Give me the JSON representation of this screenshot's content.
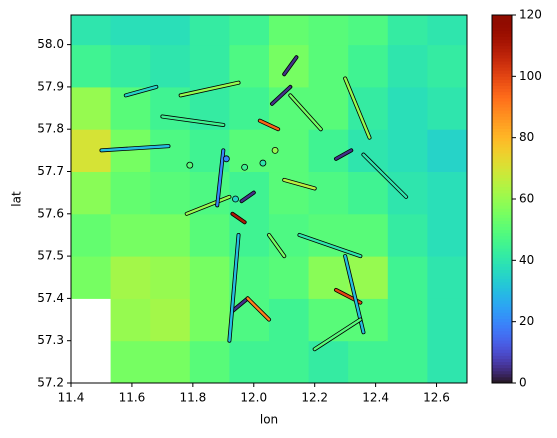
{
  "chart_data": {
    "type": "heatmap",
    "xlabel": "lon",
    "ylabel": "lat",
    "colormap": "turbo",
    "clim": [
      0,
      120
    ],
    "cticks": [
      0,
      20,
      40,
      60,
      80,
      100,
      120
    ],
    "xlim": [
      11.4,
      12.7
    ],
    "ylim": [
      57.2,
      58.07
    ],
    "xticks": [
      11.4,
      11.6,
      11.8,
      {
        "value": 12,
        "label": "12.0"
      },
      12.2,
      12.4,
      12.6
    ],
    "yticks": [
      57.2,
      57.3,
      57.4,
      57.5,
      57.6,
      57.7,
      57.8,
      57.9,
      {
        "value": 58,
        "label": "58.0"
      }
    ],
    "x_edges": [
      11.4,
      11.53,
      11.66,
      11.79,
      11.92,
      12.05,
      12.18,
      12.31,
      12.44,
      12.57,
      12.7
    ],
    "y_edges": [
      57.2,
      57.3,
      57.4,
      57.5,
      57.6,
      57.7,
      57.8,
      57.9,
      58.0,
      58.07
    ],
    "grid_values": [
      [
        null,
        55,
        55,
        50,
        45,
        45,
        42,
        45,
        45,
        40
      ],
      [
        null,
        60,
        62,
        55,
        48,
        45,
        50,
        50,
        45,
        40
      ],
      [
        55,
        62,
        60,
        55,
        48,
        50,
        58,
        60,
        45,
        40
      ],
      [
        52,
        55,
        55,
        50,
        45,
        48,
        50,
        50,
        42,
        38
      ],
      [
        58,
        52,
        50,
        48,
        45,
        50,
        48,
        45,
        40,
        38
      ],
      [
        70,
        55,
        48,
        45,
        50,
        50,
        45,
        40,
        38,
        35
      ],
      [
        60,
        50,
        45,
        42,
        45,
        50,
        50,
        42,
        38,
        40
      ],
      [
        45,
        42,
        40,
        42,
        48,
        55,
        50,
        45,
        40,
        42
      ],
      [
        40,
        38,
        38,
        42,
        45,
        52,
        50,
        48,
        42,
        40
      ]
    ],
    "segments": [
      {
        "x": [
          12.14,
          12.1
        ],
        "y": [
          57.97,
          57.93
        ],
        "value": 5
      },
      {
        "x": [
          12.12,
          12.06
        ],
        "y": [
          57.9,
          57.86
        ],
        "value": 5
      },
      {
        "x": [
          11.98,
          11.93
        ],
        "y": [
          57.4,
          57.37
        ],
        "value": 5
      },
      {
        "x": [
          12.27,
          12.32
        ],
        "y": [
          57.73,
          57.75
        ],
        "value": 5
      },
      {
        "x": [
          12.0,
          11.96
        ],
        "y": [
          57.65,
          57.63
        ],
        "value": 5
      },
      {
        "x": [
          11.98,
          12.05
        ],
        "y": [
          57.4,
          57.35
        ],
        "value": 90
      },
      {
        "x": [
          12.02,
          12.08
        ],
        "y": [
          57.82,
          57.8
        ],
        "value": 95
      },
      {
        "x": [
          12.27,
          12.35
        ],
        "y": [
          57.42,
          57.39
        ],
        "value": 100
      },
      {
        "x": [
          11.76,
          11.95
        ],
        "y": [
          57.88,
          57.91
        ],
        "value": 60
      },
      {
        "x": [
          11.7,
          11.9
        ],
        "y": [
          57.83,
          57.81
        ],
        "value": 45
      },
      {
        "x": [
          12.12,
          12.22
        ],
        "y": [
          57.88,
          57.8
        ],
        "value": 55
      },
      {
        "x": [
          11.5,
          11.72
        ],
        "y": [
          57.75,
          57.76
        ],
        "value": 30
      },
      {
        "x": [
          11.78,
          11.92
        ],
        "y": [
          57.6,
          57.64
        ],
        "value": 60
      },
      {
        "x": [
          11.95,
          11.92
        ],
        "y": [
          57.55,
          57.3
        ],
        "value": 30
      },
      {
        "x": [
          12.15,
          12.35
        ],
        "y": [
          57.55,
          57.5
        ],
        "value": 40
      },
      {
        "x": [
          12.3,
          12.36
        ],
        "y": [
          57.5,
          57.32
        ],
        "value": 30
      },
      {
        "x": [
          12.36,
          12.5
        ],
        "y": [
          57.74,
          57.64
        ],
        "value": 40
      },
      {
        "x": [
          12.35,
          12.2
        ],
        "y": [
          57.35,
          57.28
        ],
        "value": 50
      },
      {
        "x": [
          12.3,
          12.38
        ],
        "y": [
          57.92,
          57.78
        ],
        "value": 60
      },
      {
        "x": [
          11.9,
          11.88
        ],
        "y": [
          57.75,
          57.62
        ],
        "value": 20
      },
      {
        "x": [
          12.1,
          12.2
        ],
        "y": [
          57.68,
          57.66
        ],
        "value": 65
      },
      {
        "x": [
          12.05,
          12.1
        ],
        "y": [
          57.55,
          57.5
        ],
        "value": 55
      },
      {
        "x": [
          11.58,
          11.68
        ],
        "y": [
          57.88,
          57.9
        ],
        "value": 35
      },
      {
        "x": [
          11.93,
          11.97
        ],
        "y": [
          57.6,
          57.58
        ],
        "value": 110
      }
    ],
    "points": [
      {
        "x": 11.79,
        "y": 57.715,
        "value": 50
      },
      {
        "x": 11.97,
        "y": 57.71,
        "value": 45
      },
      {
        "x": 12.03,
        "y": 57.72,
        "value": 40
      },
      {
        "x": 11.94,
        "y": 57.635,
        "value": 35
      },
      {
        "x": 12.07,
        "y": 57.75,
        "value": 60
      },
      {
        "x": 11.91,
        "y": 57.73,
        "value": 20
      }
    ]
  }
}
